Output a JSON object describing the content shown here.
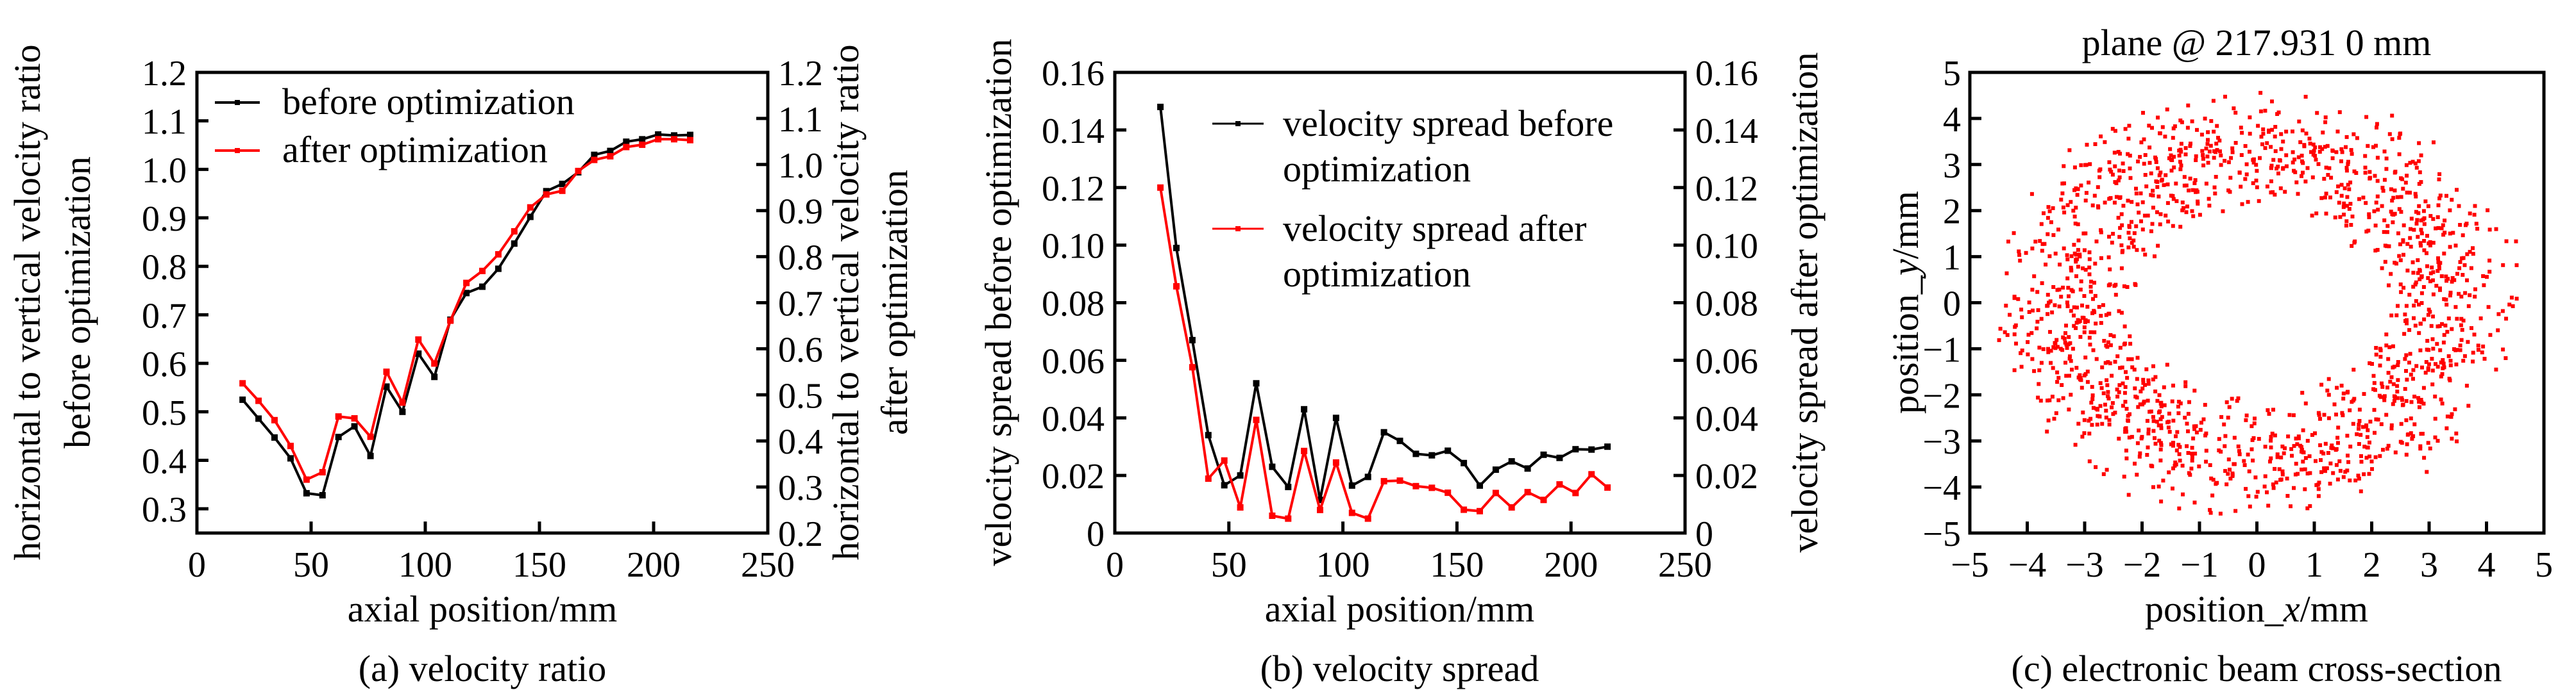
{
  "chart_data": [
    {
      "id": "a",
      "type": "line",
      "caption": "(a) velocity ratio",
      "xlabel": "axial position/mm",
      "ylabel_left": [
        "horizontal to vertical velocity ratio",
        "before optimization"
      ],
      "ylabel_right": [
        "horizontal to vertical velocity ratio",
        "after optimization"
      ],
      "xlim": [
        0,
        250
      ],
      "xticks": [
        0,
        50,
        100,
        150,
        200,
        250
      ],
      "xtick_labels": [
        "0",
        "50",
        "100",
        "150",
        "200",
        "250"
      ],
      "ylim_left": [
        0.25,
        1.2
      ],
      "yticks_left": [
        0.3,
        0.4,
        0.5,
        0.6,
        0.7,
        0.8,
        0.9,
        1.0,
        1.1,
        1.2
      ],
      "ytick_labels_left": [
        "0.3",
        "0.4",
        "0.5",
        "0.6",
        "0.7",
        "0.8",
        "0.9",
        "1.0",
        "1.1",
        "1.2"
      ],
      "ylim_right": [
        0.2,
        1.2
      ],
      "yticks_right": [
        0.2,
        0.3,
        0.4,
        0.5,
        0.6,
        0.7,
        0.8,
        0.9,
        1.0,
        1.1,
        1.2
      ],
      "ytick_labels_right": [
        "0.2",
        "0.3",
        "0.4",
        "0.5",
        "0.6",
        "0.7",
        "0.8",
        "0.9",
        "1.0",
        "1.1",
        "1.2"
      ],
      "legend_position": "top-left",
      "grid": false,
      "x": [
        20,
        27,
        34,
        41,
        48,
        55,
        62,
        69,
        76,
        83,
        90,
        97,
        104,
        111,
        118,
        125,
        132,
        139,
        146,
        153,
        160,
        167,
        174,
        181,
        188,
        195,
        202,
        209,
        216
      ],
      "series": [
        {
          "name": "before optimization",
          "axis": "left",
          "color": "#000000",
          "values": [
            0.525,
            0.486,
            0.447,
            0.404,
            0.332,
            0.328,
            0.448,
            0.47,
            0.409,
            0.552,
            0.5,
            0.62,
            0.572,
            0.69,
            0.745,
            0.758,
            0.795,
            0.847,
            0.902,
            0.955,
            0.97,
            0.994,
            1.03,
            1.038,
            1.057,
            1.062,
            1.072,
            1.07,
            1.071
          ]
        },
        {
          "name": "after optimization",
          "axis": "right",
          "color": "#ff0000",
          "values": [
            0.525,
            0.487,
            0.445,
            0.389,
            0.316,
            0.332,
            0.453,
            0.449,
            0.409,
            0.55,
            0.483,
            0.62,
            0.568,
            0.661,
            0.743,
            0.769,
            0.805,
            0.855,
            0.907,
            0.935,
            0.943,
            0.986,
            1.01,
            1.018,
            1.038,
            1.043,
            1.055,
            1.055,
            1.053
          ]
        }
      ]
    },
    {
      "id": "b",
      "type": "line",
      "caption": "(b) velocity spread",
      "xlabel": "axial position/mm",
      "ylabel_left": [
        "velocity spread before optimization"
      ],
      "ylabel_right": [
        "velocity spread after optimization"
      ],
      "xlim": [
        0,
        250
      ],
      "xticks": [
        0,
        50,
        100,
        150,
        200,
        250
      ],
      "xtick_labels": [
        "0",
        "50",
        "100",
        "150",
        "200",
        "250"
      ],
      "ylim_left": [
        0,
        0.16
      ],
      "yticks_left": [
        0,
        0.02,
        0.04,
        0.06,
        0.08,
        0.1,
        0.12,
        0.14,
        0.16
      ],
      "ytick_labels_left": [
        "0",
        "0.02",
        "0.04",
        "0.06",
        "0.08",
        "0.10",
        "0.12",
        "0.14",
        "0.16"
      ],
      "ylim_right": [
        0,
        0.16
      ],
      "yticks_right": [
        0,
        0.02,
        0.04,
        0.06,
        0.08,
        0.1,
        0.12,
        0.14,
        0.16
      ],
      "ytick_labels_right": [
        "0",
        "0.02",
        "0.04",
        "0.06",
        "0.08",
        "0.10",
        "0.12",
        "0.14",
        "0.16"
      ],
      "legend_position": "top-right",
      "grid": false,
      "x": [
        20,
        27,
        34,
        41,
        48,
        55,
        62,
        69,
        76,
        83,
        90,
        97,
        104,
        111,
        118,
        125,
        132,
        139,
        146,
        153,
        160,
        167,
        174,
        181,
        188,
        195,
        202,
        209,
        216
      ],
      "series": [
        {
          "name": "velocity spread before optimization",
          "legend_lines": [
            "velocity spread before",
            "optimization"
          ],
          "axis": "left",
          "color": "#000000",
          "values": [
            0.148,
            0.099,
            0.067,
            0.034,
            0.0166,
            0.02,
            0.052,
            0.023,
            0.016,
            0.043,
            0.0115,
            0.04,
            0.0165,
            0.0195,
            0.035,
            0.032,
            0.0275,
            0.027,
            0.0286,
            0.0243,
            0.0165,
            0.022,
            0.0249,
            0.0224,
            0.0272,
            0.0261,
            0.0291,
            0.029,
            0.03
          ]
        },
        {
          "name": "velocity spread after optimization",
          "legend_lines": [
            "velocity spread after",
            "optimization"
          ],
          "axis": "right",
          "color": "#ff0000",
          "values": [
            0.12,
            0.0857,
            0.0576,
            0.0189,
            0.0252,
            0.0089,
            0.0393,
            0.006,
            0.005,
            0.0285,
            0.008,
            0.0245,
            0.007,
            0.005,
            0.018,
            0.0182,
            0.0163,
            0.0157,
            0.014,
            0.0081,
            0.0076,
            0.0139,
            0.0089,
            0.0142,
            0.0115,
            0.0169,
            0.0139,
            0.0204,
            0.0158
          ]
        }
      ]
    },
    {
      "id": "c",
      "type": "scatter",
      "title": "plane @ 217.931 0 mm",
      "caption": "(c) electronic beam cross-section",
      "xlabel_parts": [
        "position_",
        "x",
        "/mm"
      ],
      "ylabel_parts": [
        "position_",
        "y",
        "/mm"
      ],
      "xlim": [
        -5,
        5
      ],
      "ylim": [
        -5,
        5
      ],
      "xticks": [
        -5,
        -4,
        -3,
        -2,
        -1,
        0,
        1,
        2,
        3,
        4,
        5
      ],
      "xtick_labels": [
        "−5",
        "−4",
        "−3",
        "−2",
        "−1",
        "0",
        "1",
        "2",
        "3",
        "4",
        "5"
      ],
      "yticks": [
        -5,
        -4,
        -3,
        -2,
        -1,
        0,
        1,
        2,
        3,
        4,
        5
      ],
      "ytick_labels": [
        "−5",
        "−4",
        "−3",
        "−2",
        "−1",
        "0",
        "1",
        "2",
        "3",
        "4",
        "5"
      ],
      "grid": false,
      "color": "#ff0000",
      "distribution": {
        "shape": "annulus",
        "center": [
          0,
          0
        ],
        "inner_radius_x": 1.95,
        "inner_radius_y": 2.0,
        "outer_radius": 4.85,
        "approx_point_count": 1600
      }
    }
  ]
}
